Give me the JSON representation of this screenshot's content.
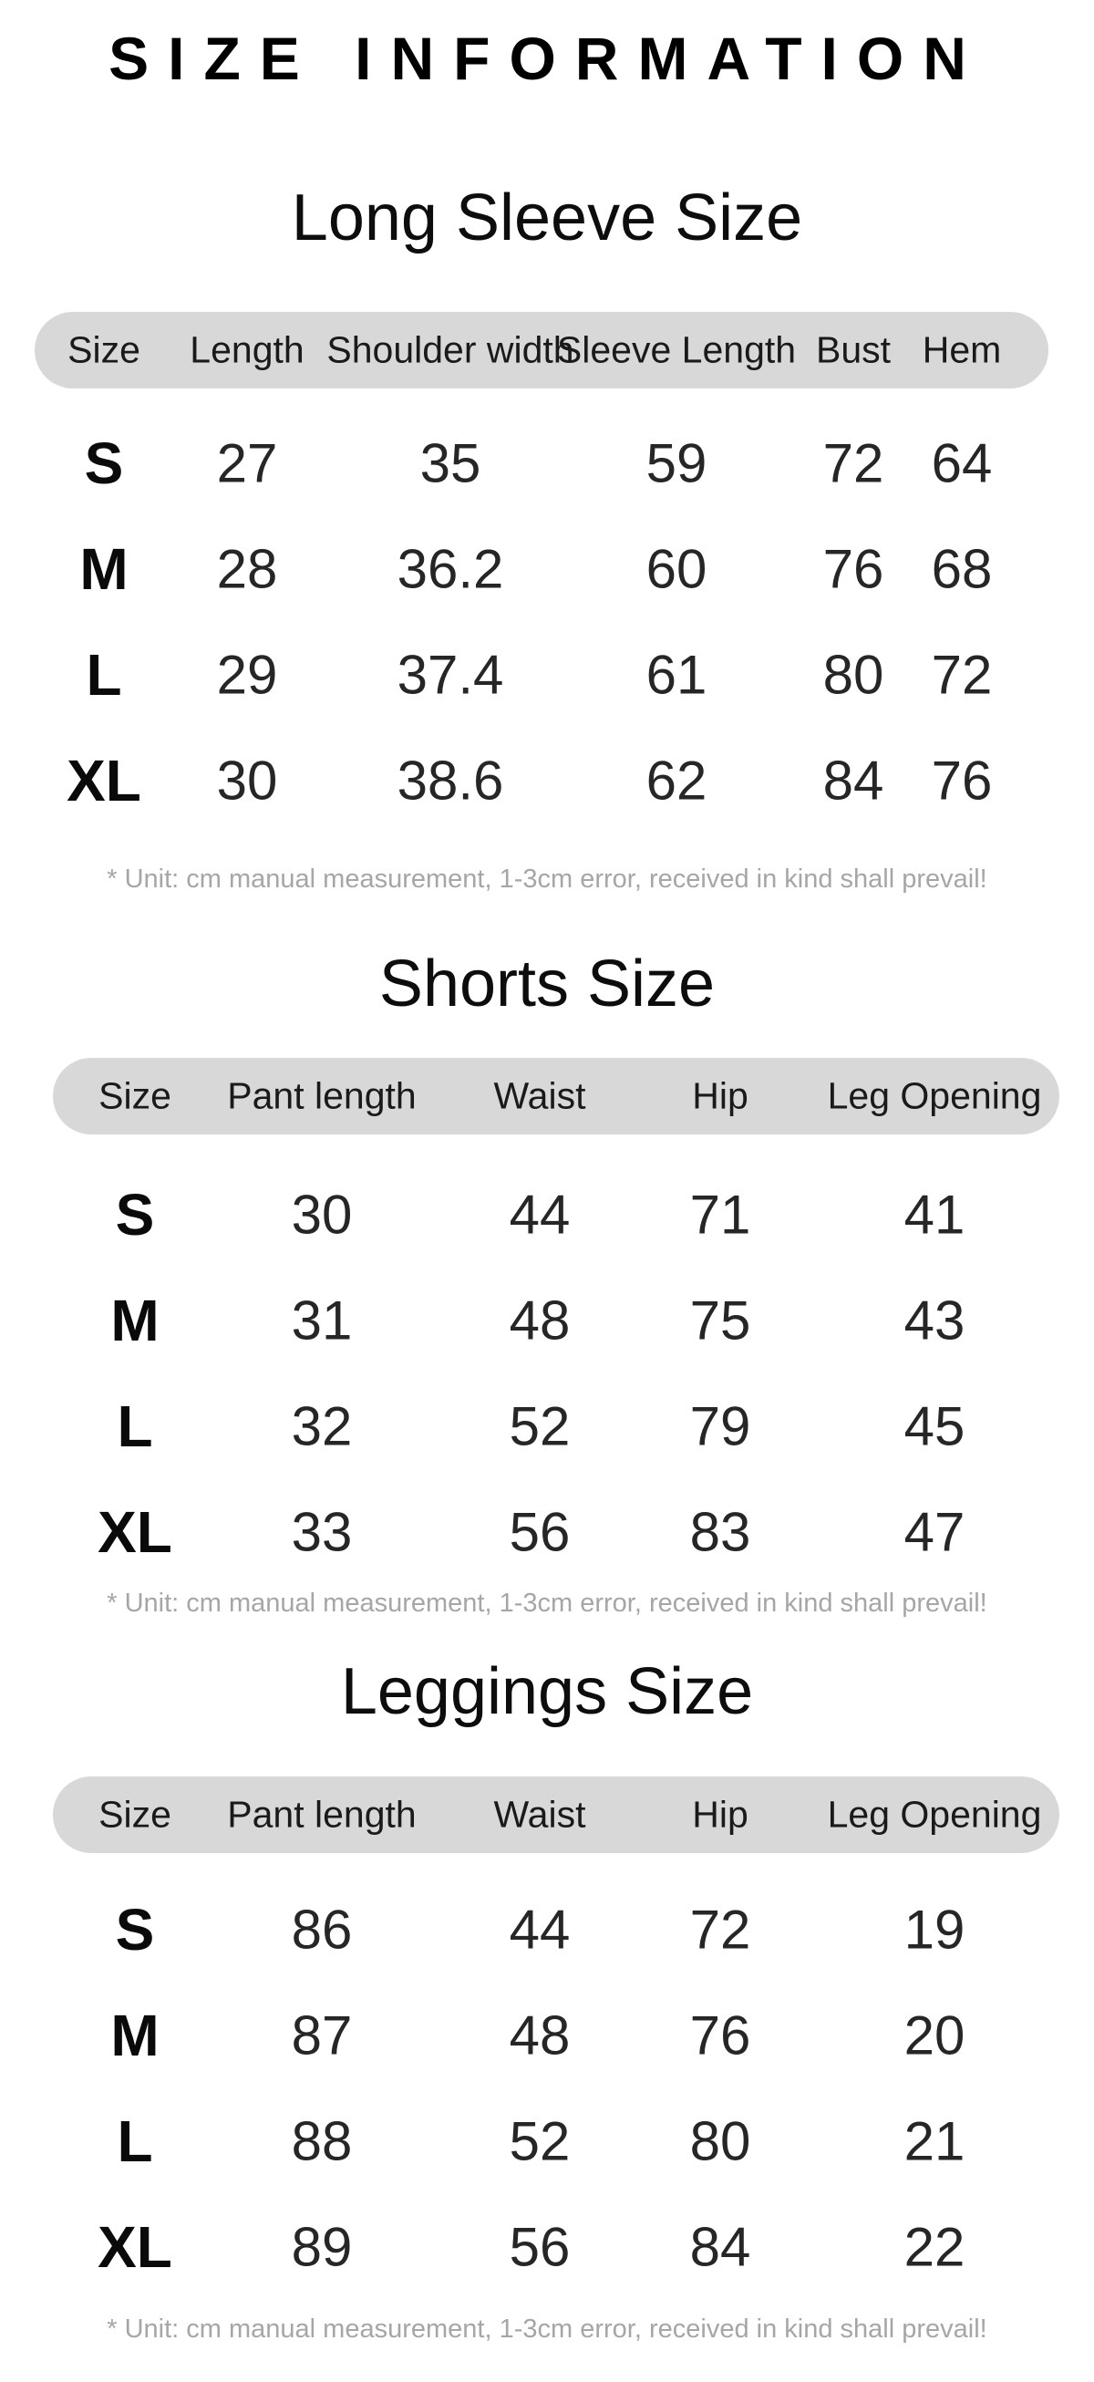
{
  "page_title": "SIZE INFORMATION",
  "colors": {
    "header_bar": "#d8d8d8",
    "note_text": "#a6a6a6",
    "value_text": "#262626"
  },
  "tables": [
    {
      "title": "Long Sleeve Size",
      "columns": [
        "Size",
        "Length",
        "Shoulder width",
        "Sleeve Length",
        "Bust",
        "Hem"
      ],
      "rows": [
        [
          "S",
          "27",
          "35",
          "59",
          "72",
          "64"
        ],
        [
          "M",
          "28",
          "36.2",
          "60",
          "76",
          "68"
        ],
        [
          "L",
          "29",
          "37.4",
          "61",
          "80",
          "72"
        ],
        [
          "XL",
          "30",
          "38.6",
          "62",
          "84",
          "76"
        ]
      ],
      "note": "* Unit: cm manual measurement, 1-3cm error, received in kind shall prevail!"
    },
    {
      "title": "Shorts Size",
      "columns": [
        "Size",
        "Pant length",
        "Waist",
        "Hip",
        "Leg Opening"
      ],
      "rows": [
        [
          "S",
          "30",
          "44",
          "71",
          "41"
        ],
        [
          "M",
          "31",
          "48",
          "75",
          "43"
        ],
        [
          "L",
          "32",
          "52",
          "79",
          "45"
        ],
        [
          "XL",
          "33",
          "56",
          "83",
          "47"
        ]
      ],
      "note": "* Unit: cm manual measurement, 1-3cm error, received in kind shall prevail!"
    },
    {
      "title": "Leggings Size",
      "columns": [
        "Size",
        "Pant length",
        "Waist",
        "Hip",
        "Leg Opening"
      ],
      "rows": [
        [
          "S",
          "86",
          "44",
          "72",
          "19"
        ],
        [
          "M",
          "87",
          "48",
          "76",
          "20"
        ],
        [
          "L",
          "88",
          "52",
          "80",
          "21"
        ],
        [
          "XL",
          "89",
          "56",
          "84",
          "22"
        ]
      ],
      "note": "* Unit: cm manual measurement, 1-3cm error, received in kind shall prevail!"
    }
  ]
}
